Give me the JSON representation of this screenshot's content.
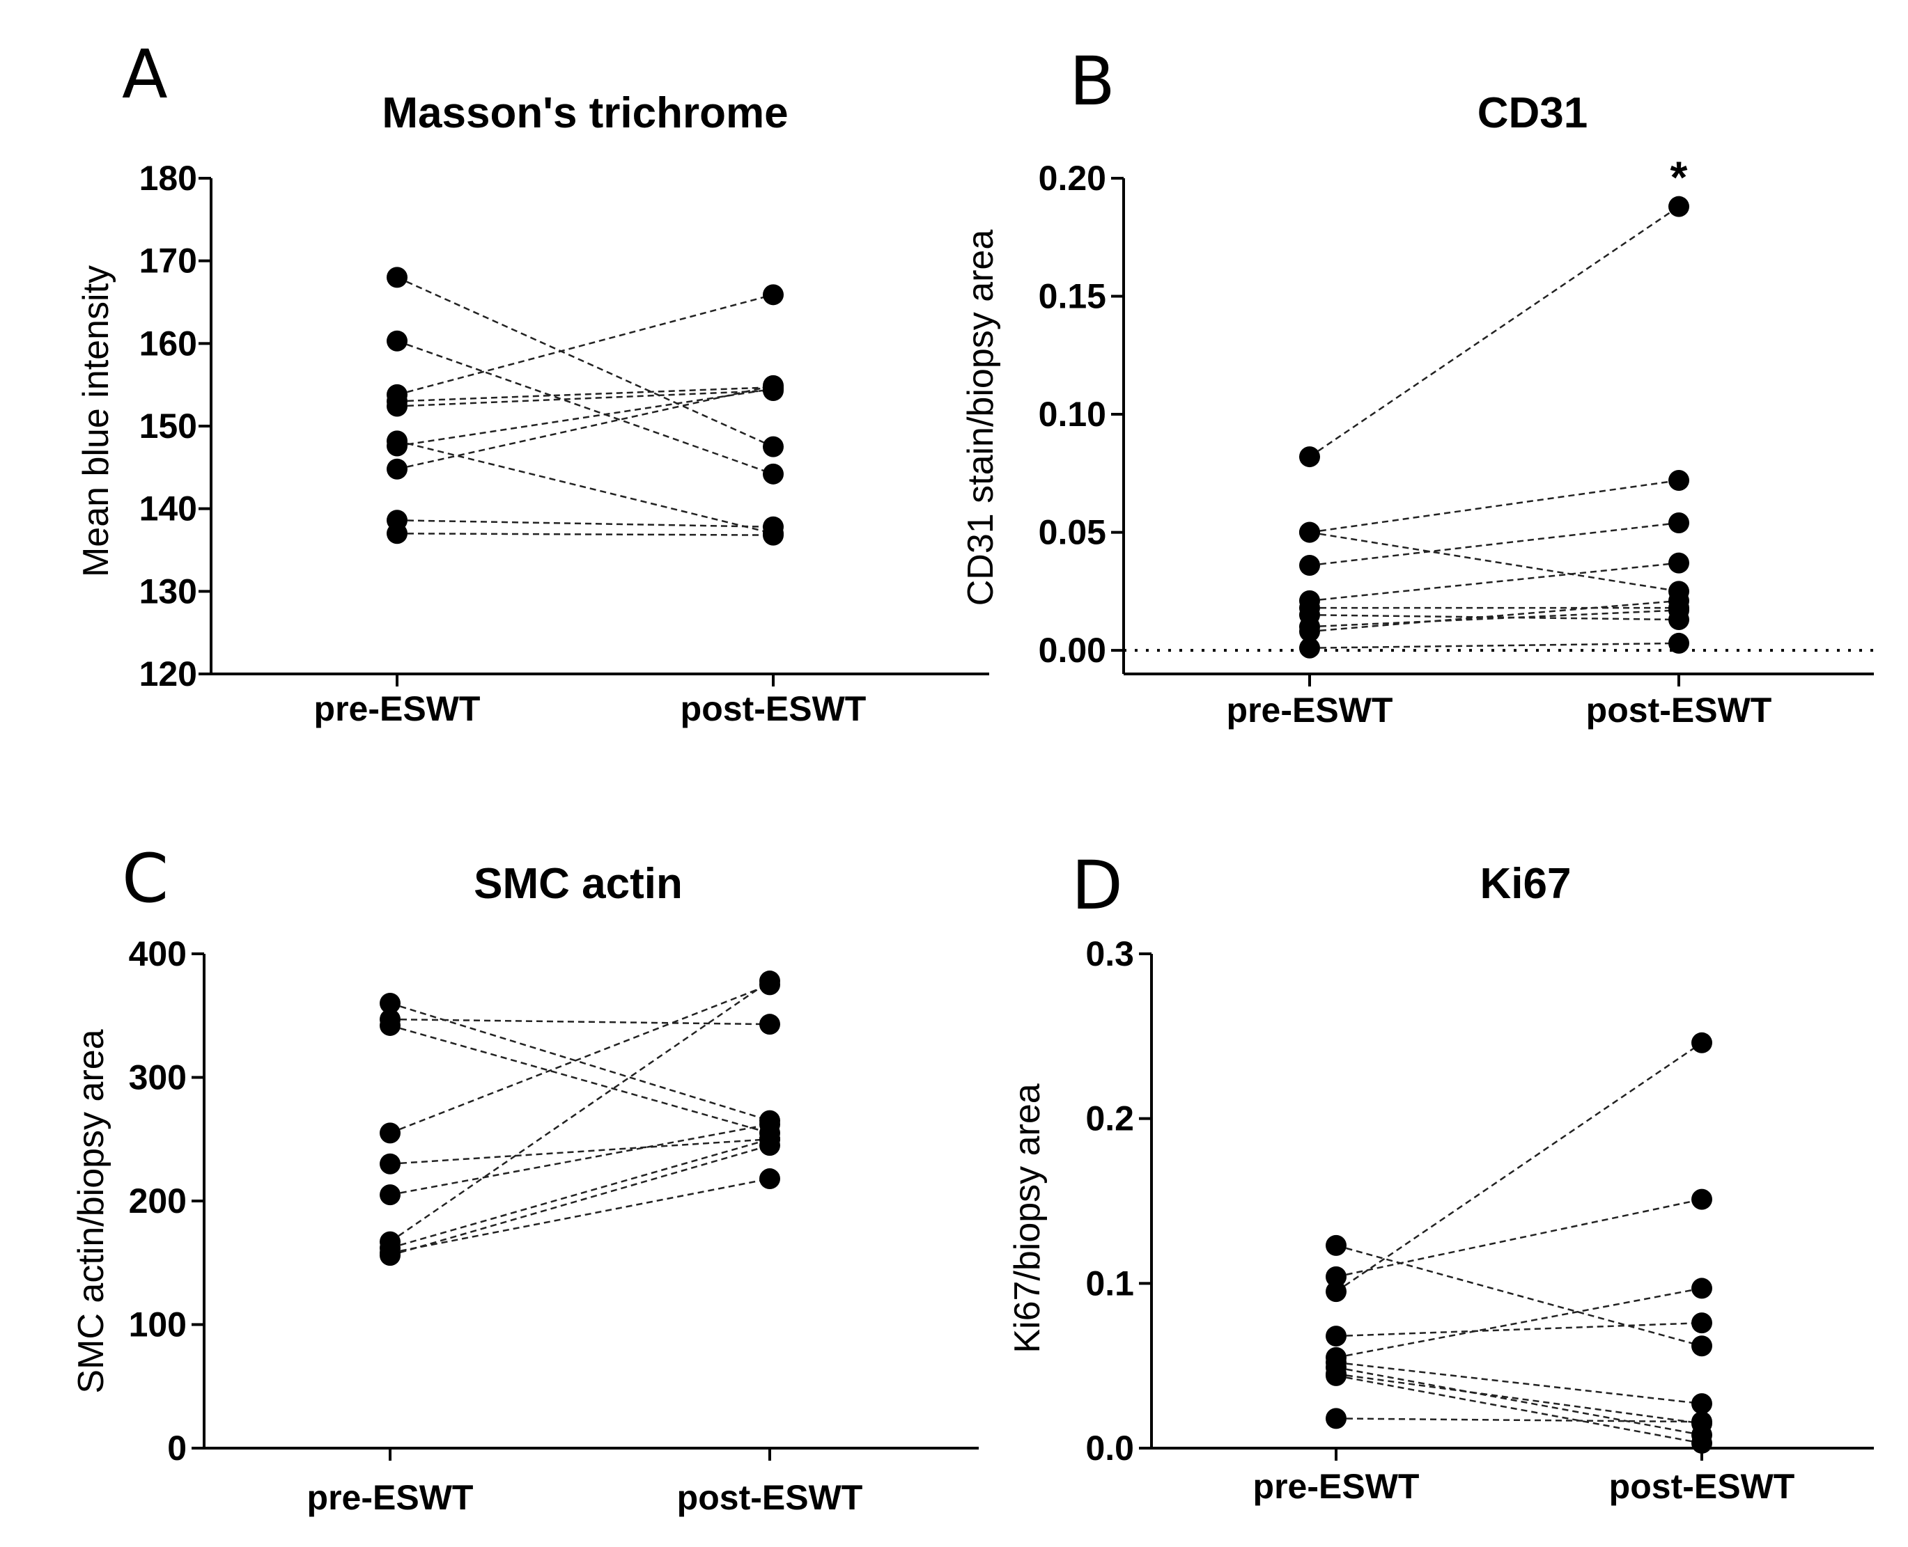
{
  "chart_data": [
    {
      "type": "scatter",
      "panel_letter": "A",
      "title": "Masson's trichrome",
      "ylabel": "Mean blue intensity",
      "xlabel": "",
      "categories": [
        "pre-ESWT",
        "post-ESWT"
      ],
      "ylim": [
        120,
        180
      ],
      "yticks": [
        120,
        130,
        140,
        150,
        160,
        170,
        180
      ],
      "ytick_labels": [
        "120",
        "130",
        "140",
        "150",
        "160",
        "170",
        "180"
      ],
      "paired_values": [
        [
          168.0,
          147.5
        ],
        [
          160.3,
          144.2
        ],
        [
          153.8,
          165.9
        ],
        [
          153.0,
          154.7
        ],
        [
          152.4,
          154.3
        ],
        [
          148.2,
          137.0
        ],
        [
          147.6,
          154.5
        ],
        [
          144.8,
          154.9
        ],
        [
          138.6,
          137.8
        ],
        [
          137.0,
          136.8
        ]
      ],
      "annotations": [],
      "reference_line": null
    },
    {
      "type": "scatter",
      "panel_letter": "B",
      "title": "CD31",
      "ylabel": "CD31 stain/biopsy area",
      "xlabel": "",
      "categories": [
        "pre-ESWT",
        "post-ESWT"
      ],
      "ylim": [
        -0.01,
        0.2
      ],
      "yticks": [
        0.0,
        0.05,
        0.1,
        0.15,
        0.2
      ],
      "ytick_labels": [
        "0.00",
        "0.05",
        "0.10",
        "0.15",
        "0.20"
      ],
      "paired_values": [
        [
          0.082,
          0.188
        ],
        [
          0.05,
          0.025
        ],
        [
          0.05,
          0.072
        ],
        [
          0.036,
          0.054
        ],
        [
          0.021,
          0.037
        ],
        [
          0.018,
          0.018
        ],
        [
          0.015,
          0.013
        ],
        [
          0.01,
          0.017
        ],
        [
          0.008,
          0.021
        ],
        [
          0.001,
          0.003
        ]
      ],
      "annotations": [
        {
          "text": "*",
          "category": "post-ESWT"
        }
      ],
      "reference_line": 0
    },
    {
      "type": "scatter",
      "panel_letter": "C",
      "title": "SMC actin",
      "ylabel": "SMC actin/biopsy area",
      "xlabel": "",
      "categories": [
        "pre-ESWT",
        "post-ESWT"
      ],
      "ylim": [
        0,
        400
      ],
      "yticks": [
        0,
        100,
        200,
        300,
        400
      ],
      "ytick_labels": [
        "0",
        "100",
        "200",
        "300",
        "400"
      ],
      "paired_values": [
        [
          360,
          265
        ],
        [
          347,
          343
        ],
        [
          342,
          255
        ],
        [
          255,
          375
        ],
        [
          230,
          250
        ],
        [
          205,
          262
        ],
        [
          167,
          378
        ],
        [
          162,
          250
        ],
        [
          158,
          218
        ],
        [
          156,
          245
        ]
      ],
      "annotations": [],
      "reference_line": null
    },
    {
      "type": "scatter",
      "panel_letter": "D",
      "title": "Ki67",
      "ylabel": "Ki67/biopsy area",
      "xlabel": "",
      "categories": [
        "pre-ESWT",
        "post-ESWT"
      ],
      "ylim": [
        0,
        0.3
      ],
      "yticks": [
        0.0,
        0.1,
        0.2,
        0.3
      ],
      "ytick_labels": [
        "0.0",
        "0.1",
        "0.2",
        "0.3"
      ],
      "paired_values": [
        [
          0.123,
          0.062
        ],
        [
          0.104,
          0.151
        ],
        [
          0.095,
          0.246
        ],
        [
          0.068,
          0.076
        ],
        [
          0.055,
          0.097
        ],
        [
          0.052,
          0.027
        ],
        [
          0.049,
          0.008
        ],
        [
          0.045,
          0.015
        ],
        [
          0.044,
          0.003
        ],
        [
          0.018,
          0.016
        ]
      ],
      "annotations": [],
      "reference_line": null
    }
  ]
}
